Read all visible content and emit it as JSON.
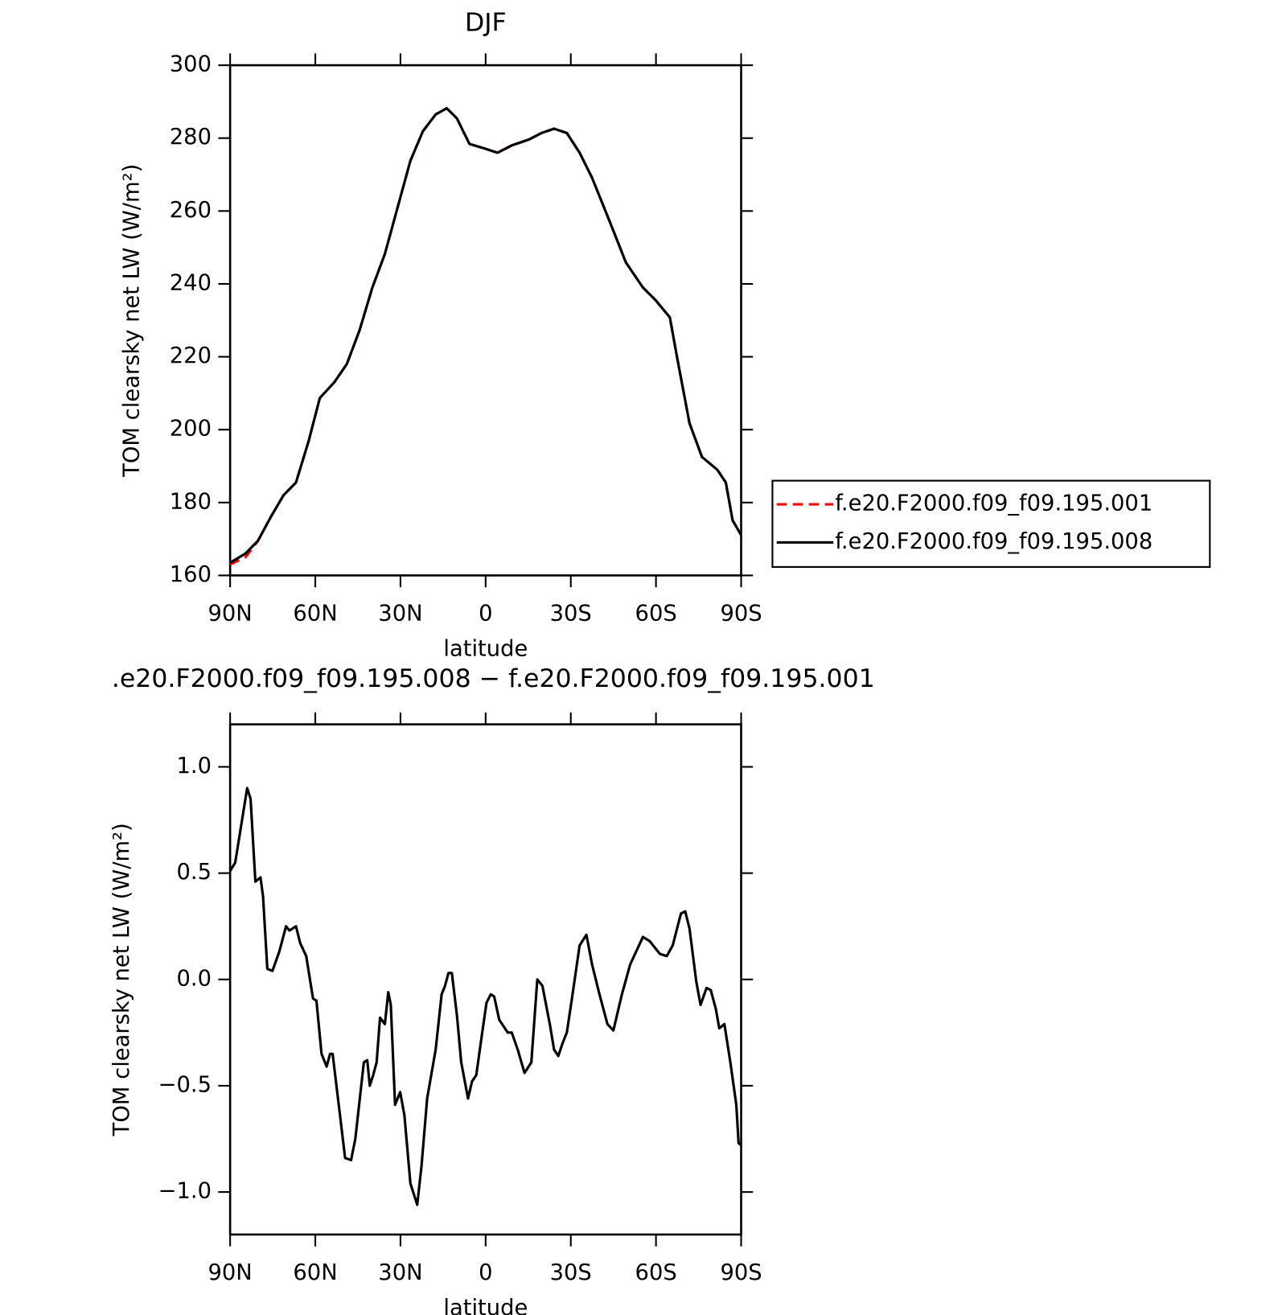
{
  "chart_data": [
    {
      "type": "line",
      "title": "DJF",
      "x_label": "latitude",
      "y_label": "TOM clearsky net LW (W/m²)",
      "xlim": [
        90,
        -90
      ],
      "xticks": [
        {
          "value": 90,
          "label": "90N"
        },
        {
          "value": 60,
          "label": "60N"
        },
        {
          "value": 30,
          "label": "30N"
        },
        0,
        {
          "value": -30,
          "label": "30S"
        },
        {
          "value": -60,
          "label": "60S"
        },
        {
          "value": -90,
          "label": "90S"
        }
      ],
      "ylim": [
        160,
        300
      ],
      "yticks": [
        160,
        180,
        200,
        220,
        240,
        260,
        280,
        300
      ],
      "legend": "right",
      "x": [
        90,
        84.6,
        80.2,
        75.7,
        71.2,
        66.8,
        62.3,
        58.4,
        53.3,
        48.9,
        44.4,
        39.9,
        35.5,
        31,
        26.5,
        22.1,
        17.6,
        13.7,
        10.1,
        5.7,
        0.6,
        -4.2,
        -9.2,
        -15.2,
        -19.7,
        -24.1,
        -28.6,
        -33.1,
        -37.5,
        -43.5,
        -49.4,
        -55.4,
        -59.9,
        -64.9,
        -67.3,
        -71.8,
        -76.2,
        -81.6,
        -84.6,
        -87,
        -90
      ],
      "series": [
        {
          "name": "f.e20.F2000.f09_f09.195.001",
          "color": "#ff0000",
          "line_style": "dashed",
          "values": [
            163,
            165,
            169.5,
            176,
            182,
            185.5,
            197,
            208.7,
            213,
            218,
            227.3,
            239,
            248.2,
            261,
            273.8,
            281.9,
            286.5,
            288.2,
            285.4,
            278.4,
            277.2,
            276,
            278,
            279.6,
            281.4,
            282.6,
            281.4,
            276,
            269.1,
            257.5,
            245.9,
            239,
            235.5,
            230.8,
            220.4,
            201.8,
            192.5,
            189,
            185.5,
            175.1,
            171.1
          ]
        },
        {
          "name": "f.e20.F2000.f09_f09.195.008",
          "color": "#000000",
          "line_style": "solid",
          "values": [
            163.5,
            166,
            169.5,
            176,
            182,
            185.5,
            197,
            208.7,
            213,
            218,
            227.3,
            239,
            248.2,
            261,
            273.8,
            281.9,
            286.5,
            288.2,
            285.4,
            278.4,
            277.2,
            276,
            278,
            279.6,
            281.4,
            282.6,
            281.4,
            276,
            269.1,
            257.5,
            245.9,
            239,
            235.5,
            230.8,
            220.4,
            201.8,
            192.5,
            189,
            185.5,
            175.1,
            171.1
          ]
        }
      ]
    },
    {
      "type": "line",
      "title": ".e20.F2000.f09_f09.195.008 − f.e20.F2000.f09_f09.195.001",
      "x_label": "latitude",
      "y_label": "TOM clearsky net LW (W/m²)",
      "xlim": [
        90,
        -90
      ],
      "xticks": [
        {
          "value": 90,
          "label": "90N"
        },
        {
          "value": 60,
          "label": "60N"
        },
        {
          "value": 30,
          "label": "30N"
        },
        0,
        {
          "value": -30,
          "label": "30S"
        },
        {
          "value": -60,
          "label": "60S"
        },
        {
          "value": -90,
          "label": "90S"
        }
      ],
      "ylim": [
        -1.2,
        1.2
      ],
      "yticks": [
        {
          "value": -1,
          "label": "−1.0"
        },
        {
          "value": -0.5,
          "label": "−0.5"
        },
        {
          "value": 0,
          "label": "0.0"
        },
        {
          "value": 0.5,
          "label": "0.5"
        },
        {
          "value": 1,
          "label": "1.0"
        }
      ],
      "x": [
        90,
        88.2,
        84.0,
        82.8,
        81.1,
        79.3,
        78.4,
        76.9,
        75.1,
        72.7,
        70.3,
        69.1,
        66.8,
        65.3,
        63.2,
        60.8,
        59.6,
        57.8,
        56.0,
        54.8,
        53.9,
        51.2,
        49.5,
        47.4,
        45.9,
        42.9,
        41.7,
        40.8,
        39.6,
        38.4,
        37.2,
        35.5,
        34.3,
        33.4,
        31.9,
        30.1,
        28.6,
        26.5,
        24.1,
        22.6,
        20.6,
        17.6,
        15.5,
        14.3,
        13.1,
        11.9,
        10.1,
        8.6,
        6.2,
        4.8,
        3.3,
        1.2,
        -0.3,
        -1.8,
        -3.0,
        -4.8,
        -7.8,
        -9.2,
        -11.3,
        -13.7,
        -16.1,
        -18.2,
        -20.0,
        -22.6,
        -24.1,
        -25.6,
        -27.1,
        -28.6,
        -30.4,
        -33.1,
        -35.5,
        -37.5,
        -39.9,
        -42.9,
        -45.0,
        -48.0,
        -50.9,
        -55.4,
        -57.8,
        -61.4,
        -63.8,
        -65.9,
        -68.8,
        -70.3,
        -71.8,
        -74.2,
        -75.7,
        -77.8,
        -79.3,
        -81.1,
        -82.3,
        -84.1,
        -86.2,
        -88.3,
        -89.1,
        -90
      ],
      "series": [
        {
          "color": "#000000",
          "line_style": "solid",
          "values": [
            0.51,
            0.55,
            0.9,
            0.85,
            0.46,
            0.48,
            0.39,
            0.05,
            0.04,
            0.13,
            0.25,
            0.23,
            0.25,
            0.17,
            0.11,
            -0.09,
            -0.1,
            -0.35,
            -0.41,
            -0.35,
            -0.35,
            -0.65,
            -0.84,
            -0.85,
            -0.75,
            -0.39,
            -0.38,
            -0.5,
            -0.45,
            -0.39,
            -0.18,
            -0.21,
            -0.06,
            -0.12,
            -0.59,
            -0.53,
            -0.64,
            -0.96,
            -1.06,
            -0.88,
            -0.56,
            -0.33,
            -0.07,
            -0.03,
            0.03,
            0.03,
            -0.17,
            -0.39,
            -0.56,
            -0.48,
            -0.45,
            -0.25,
            -0.11,
            -0.07,
            -0.08,
            -0.19,
            -0.25,
            -0.25,
            -0.33,
            -0.44,
            -0.39,
            0.0,
            -0.03,
            -0.21,
            -0.33,
            -0.36,
            -0.3,
            -0.25,
            -0.09,
            0.16,
            0.21,
            0.07,
            -0.06,
            -0.21,
            -0.24,
            -0.07,
            0.07,
            0.2,
            0.18,
            0.12,
            0.11,
            0.16,
            0.31,
            0.32,
            0.24,
            -0.01,
            -0.12,
            -0.04,
            -0.05,
            -0.14,
            -0.23,
            -0.21,
            -0.39,
            -0.59,
            -0.77,
            -0.78
          ]
        }
      ]
    }
  ]
}
